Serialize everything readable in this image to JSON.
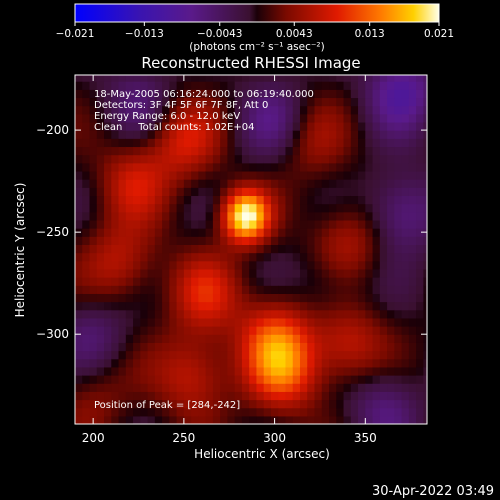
{
  "title": "Reconstructed RHESSI Image",
  "colorbar": {
    "tick_labels": [
      "−0.021",
      "−0.013",
      "−0.0043",
      "0.0043",
      "0.013",
      "0.021"
    ],
    "tick_values": [
      -0.021,
      -0.013,
      -0.0043,
      0.0043,
      0.013,
      0.021
    ],
    "range": [
      -0.021,
      0.021
    ],
    "units_label": "(photons cm⁻² s⁻¹ asec⁻²)",
    "colortable": "red temperature (blue to white)"
  },
  "info": {
    "line1": "18-May-2005 06:16:24.000 to 06:19:40.000",
    "line2": "Detectors: 3F 4F 5F 6F 7F 8F, Att 0",
    "line3": "Energy Range: 6.0 - 12.0 keV",
    "line4": "Clean     Total counts: 1.02E+04",
    "peak": "Position of Peak = [284,-242]"
  },
  "footer_date": "30-Apr-2022 03:49",
  "colors": {
    "background": "#000000",
    "negative": "#4b1f7a",
    "positive": "#c8200a",
    "peak": "#fffbe0"
  },
  "chart_data": {
    "type": "heatmap",
    "title": "Reconstructed RHESSI Image",
    "xlabel": "Heliocentric X (arcsec)",
    "ylabel": "Heliocentric Y (arcsec)",
    "xlim": [
      190,
      384
    ],
    "ylim": [
      -344,
      -173
    ],
    "x_ticks": [
      200,
      250,
      300,
      350
    ],
    "y_ticks": [
      -200,
      -250,
      -300
    ],
    "peak_position": [
      284,
      -242
    ],
    "value_range": [
      -0.021,
      0.021
    ],
    "sources": [
      {
        "x": 284,
        "y": -242,
        "value": 0.021
      },
      {
        "x": 250,
        "y": -205,
        "value": 0.008
      },
      {
        "x": 222,
        "y": -225,
        "value": 0.007
      },
      {
        "x": 215,
        "y": -265,
        "value": 0.007
      },
      {
        "x": 262,
        "y": -280,
        "value": 0.008
      },
      {
        "x": 300,
        "y": -300,
        "value": 0.009
      },
      {
        "x": 255,
        "y": -320,
        "value": 0.008
      },
      {
        "x": 340,
        "y": -255,
        "value": 0.007
      },
      {
        "x": 340,
        "y": -305,
        "value": 0.008
      },
      {
        "x": 305,
        "y": -318,
        "value": 0.011
      },
      {
        "x": 320,
        "y": -205,
        "value": 0.005
      },
      {
        "x": 200,
        "y": -330,
        "value": 0.004
      }
    ],
    "negative_regions": [
      {
        "x": 370,
        "y": -180,
        "value": -0.009
      },
      {
        "x": 370,
        "y": -240,
        "value": -0.008
      },
      {
        "x": 360,
        "y": -335,
        "value": -0.006
      },
      {
        "x": 300,
        "y": -195,
        "value": -0.006
      },
      {
        "x": 200,
        "y": -300,
        "value": -0.005
      },
      {
        "x": 330,
        "y": -275,
        "value": -0.004
      },
      {
        "x": 225,
        "y": -185,
        "value": -0.005
      }
    ],
    "grid": false
  }
}
